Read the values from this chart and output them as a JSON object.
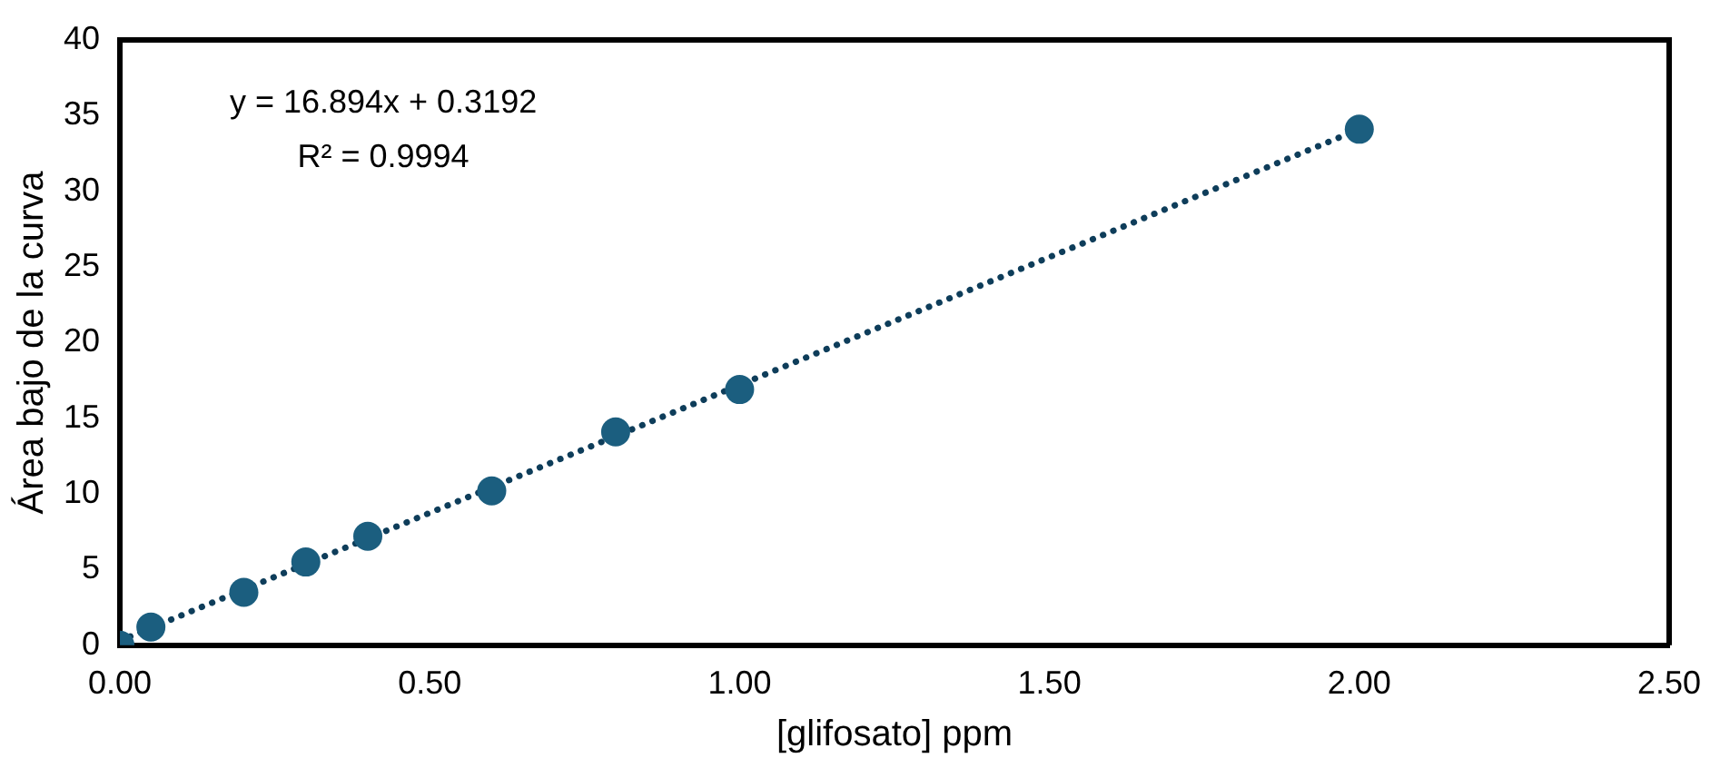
{
  "chart_data": {
    "type": "scatter",
    "xlabel": "[glifosato] ppm",
    "ylabel": "Área bajo de la curva",
    "xlim": [
      0,
      2.5
    ],
    "xticks": [
      {
        "value": 0,
        "label": "0.00"
      },
      {
        "value": 0.5,
        "label": "0.50"
      },
      {
        "value": 1,
        "label": "1.00"
      },
      {
        "value": 1.5,
        "label": "1.50"
      },
      {
        "value": 2,
        "label": "2.00"
      },
      {
        "value": 2.5,
        "label": "2.50"
      }
    ],
    "ylim": [
      0,
      40
    ],
    "yticks": [
      0,
      5,
      10,
      15,
      20,
      25,
      30,
      35,
      40
    ],
    "grid": false,
    "legend": false,
    "marker": "circle",
    "series": [
      {
        "color": "#1b5e7f",
        "x": [
          0,
          0.05,
          0.2,
          0.3,
          0.4,
          0.6,
          0.8,
          1.0,
          2.0
        ],
        "values": [
          0,
          1.2,
          3.5,
          5.5,
          7.2,
          10.2,
          14.1,
          16.9,
          34.1
        ]
      },
      {
        "type": "line",
        "color": "#0e3d5a",
        "line_style": "dotted",
        "marker": "none",
        "x": [
          0,
          2
        ],
        "values": [
          0.3,
          34.1
        ]
      }
    ],
    "annotations": [
      "y = 16.894x + 0.3192",
      "R² = 0.9994"
    ]
  }
}
